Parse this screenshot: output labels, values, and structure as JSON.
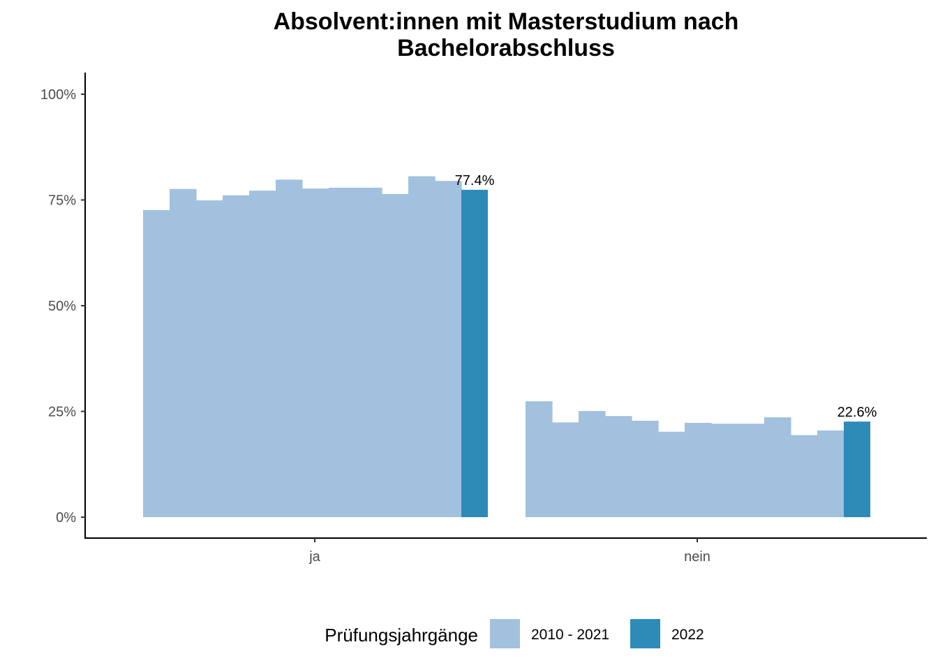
{
  "chart_data": {
    "type": "bar",
    "title_lines": [
      "Absolvent:innen mit Masterstudium nach",
      "Bachelorabschluss"
    ],
    "xlabel": "",
    "ylabel": "",
    "categories": [
      "ja",
      "nein"
    ],
    "ylim": [
      0,
      1.05
    ],
    "y_ticks": [
      0,
      0.25,
      0.5,
      0.75,
      1.0
    ],
    "y_tick_labels": [
      "0%",
      "25%",
      "50%",
      "75%",
      "100%"
    ],
    "grid": false,
    "legend": {
      "title": "Prüfungsjahrgänge",
      "position": "bottom",
      "items": [
        {
          "label": "2010 - 2021",
          "color": "#a1c1de"
        },
        {
          "label": "2022",
          "color": "#2e8bb8"
        }
      ]
    },
    "historical_series": {
      "name": "2010 - 2021",
      "color": "#a1c1de",
      "values": {
        "ja": [
          0.726,
          0.776,
          0.749,
          0.761,
          0.772,
          0.798,
          0.777,
          0.779,
          0.779,
          0.764,
          0.806,
          0.795
        ],
        "nein": [
          0.274,
          0.224,
          0.251,
          0.239,
          0.228,
          0.202,
          0.223,
          0.221,
          0.221,
          0.236,
          0.194,
          0.205
        ]
      }
    },
    "current_series": {
      "name": "2022",
      "color": "#2e8bb8",
      "values": {
        "ja": 0.774,
        "nein": 0.226
      },
      "labels": {
        "ja": "77.4%",
        "nein": "22.6%"
      }
    }
  }
}
